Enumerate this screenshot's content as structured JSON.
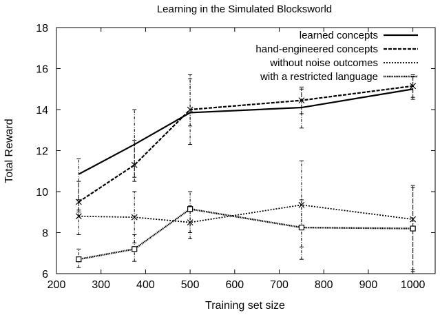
{
  "chart_data": {
    "type": "line",
    "title": "Learning in the Simulated Blocksworld",
    "xlabel": "Training set size",
    "ylabel": "Total Reward",
    "xlim": [
      200,
      1050
    ],
    "ylim": [
      6,
      18
    ],
    "xticks": [
      "200",
      "300",
      "400",
      "500",
      "600",
      "700",
      "800",
      "900",
      "1000"
    ],
    "yticks": [
      "6",
      "8",
      "10",
      "12",
      "14",
      "16",
      "18"
    ],
    "grid": false,
    "legend_position": "top-right",
    "series": [
      {
        "name": "learned concepts",
        "x": [
          250,
          375,
          500,
          750,
          1000
        ],
        "y": [
          10.85,
          12.3,
          13.85,
          14.1,
          15.0
        ],
        "err_low": [
          9.0,
          10.5,
          12.3,
          13.1,
          14.5
        ],
        "err_high": [
          11.6,
          14.0,
          15.5,
          15.1,
          15.7
        ],
        "marker": "none",
        "style": "solid"
      },
      {
        "name": "hand-engineered concepts",
        "x": [
          250,
          375,
          500,
          750,
          1000
        ],
        "y": [
          9.5,
          11.3,
          14.0,
          14.45,
          15.15
        ],
        "err_low": [
          9.1,
          10.7,
          13.2,
          13.8,
          14.6
        ],
        "err_high": [
          10.5,
          12.5,
          15.7,
          15.0,
          15.6
        ],
        "marker": "star",
        "style": "dashed"
      },
      {
        "name": "without noise outcomes",
        "x": [
          250,
          375,
          500,
          750,
          1000
        ],
        "y": [
          8.8,
          8.75,
          8.5,
          9.35,
          8.65
        ],
        "err_low": [
          7.9,
          7.5,
          7.7,
          7.3,
          6.2
        ],
        "err_high": [
          9.6,
          10.0,
          9.3,
          11.5,
          10.3
        ],
        "marker": "star",
        "style": "dotted"
      },
      {
        "name": "with a restricted language",
        "x": [
          250,
          375,
          500,
          750,
          1000
        ],
        "y": [
          6.7,
          7.2,
          9.15,
          8.25,
          8.2
        ],
        "err_low": [
          6.3,
          6.6,
          8.0,
          6.7,
          6.1
        ],
        "err_high": [
          7.2,
          7.9,
          10.0,
          9.6,
          10.2
        ],
        "marker": "square",
        "style": "dense-dotted"
      }
    ]
  }
}
